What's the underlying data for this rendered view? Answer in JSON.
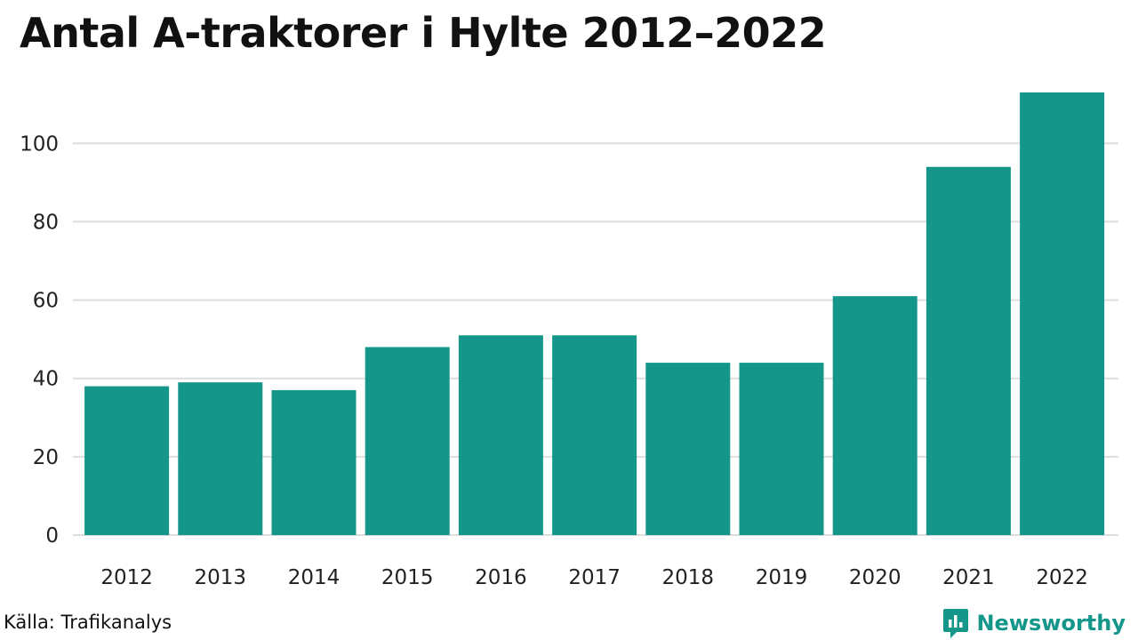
{
  "chart_data": {
    "type": "bar",
    "title": "Antal A-traktorer i Hylte 2012–2022",
    "categories": [
      "2012",
      "2013",
      "2014",
      "2015",
      "2016",
      "2017",
      "2018",
      "2019",
      "2020",
      "2021",
      "2022"
    ],
    "values": [
      38,
      39,
      37,
      48,
      51,
      51,
      44,
      44,
      61,
      94,
      113
    ],
    "xlabel": "",
    "ylabel": "",
    "ylim": [
      0,
      113
    ],
    "yticks": [
      0,
      20,
      40,
      60,
      80,
      100
    ],
    "grid": true,
    "legend": "none",
    "bar_color": "#14978A"
  },
  "footer": {
    "source": "Källa: Trafikanalys",
    "brand": "Newsworthy",
    "brand_color": "#14978A",
    "brand_icon": "newsworthy-logo-icon"
  }
}
